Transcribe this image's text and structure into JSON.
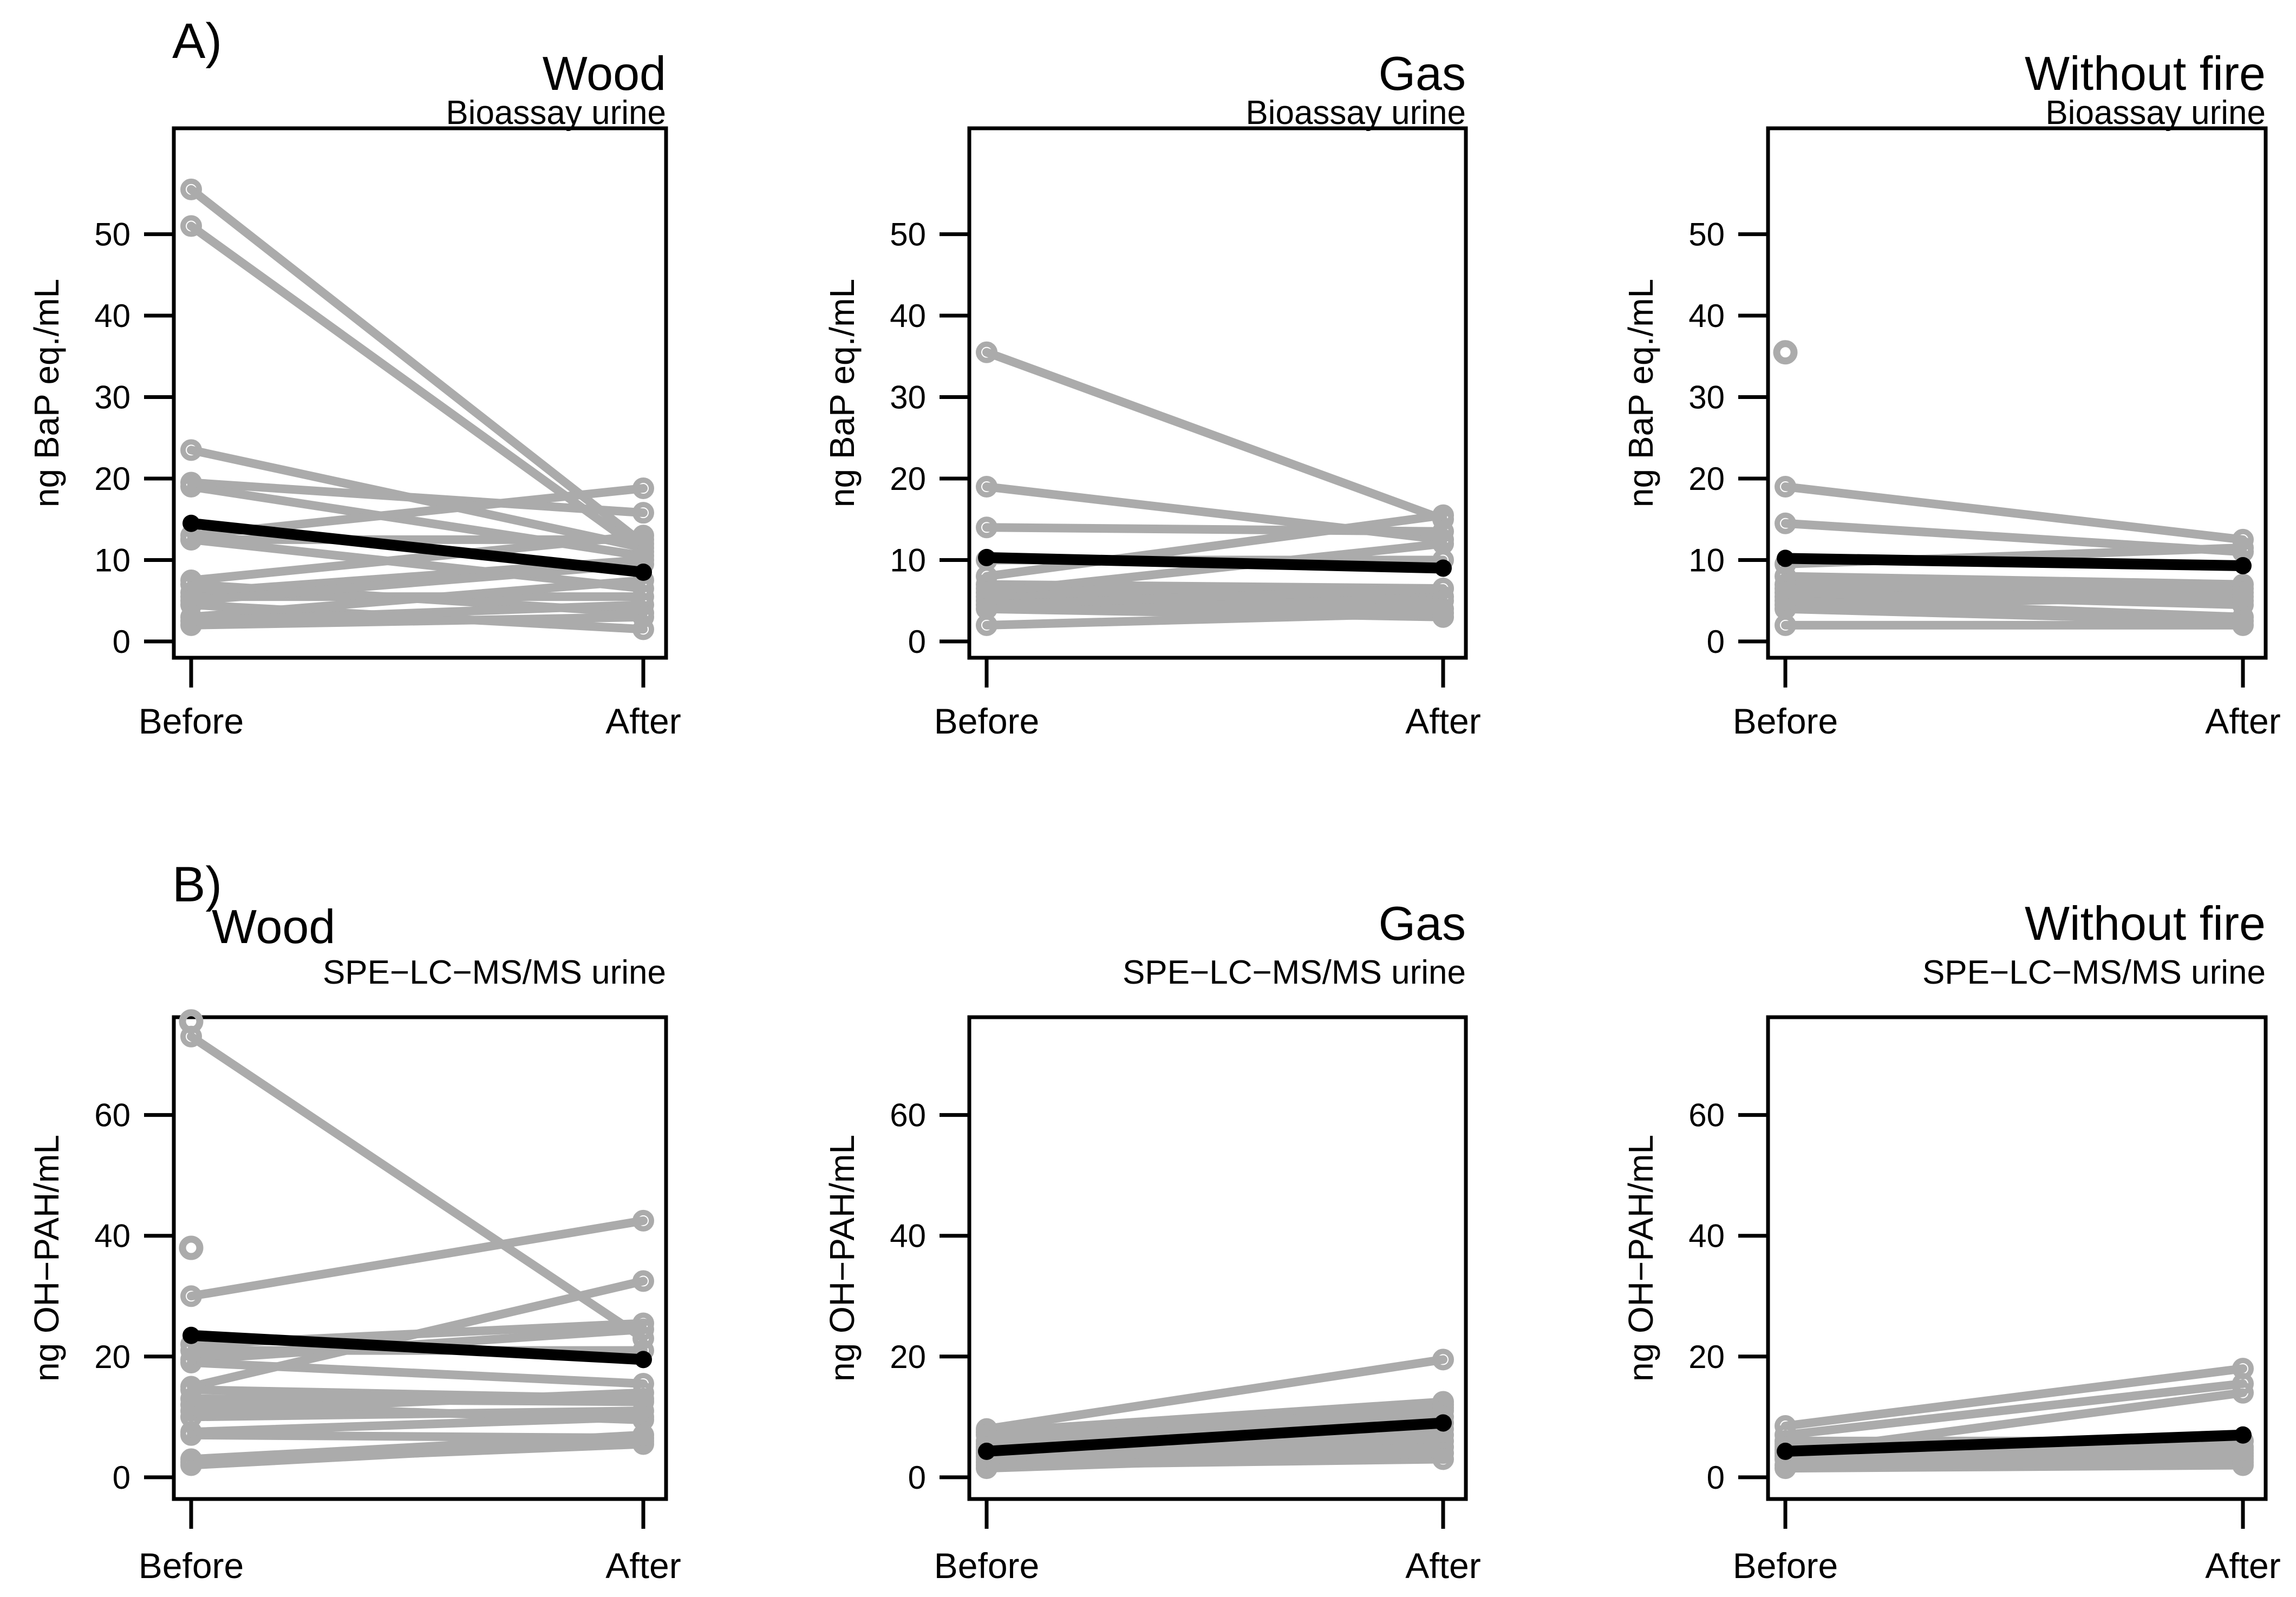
{
  "figure": {
    "background": "#ffffff",
    "colors": {
      "subject_gray": "#ABABAB",
      "mean_black": "#000000"
    },
    "section_labels": [
      {
        "id": "A",
        "text": "A)"
      },
      {
        "id": "B",
        "text": "B)"
      }
    ]
  },
  "chart_data": [
    {
      "id": "wood-bioassay",
      "type": "line",
      "title": "Wood",
      "subtitle": "Bioassay urine",
      "ylabel": "ng BaP eq./mL",
      "categories": [
        "Before",
        "After"
      ],
      "yticks": [
        0,
        10,
        20,
        30,
        40,
        50
      ],
      "ylim": [
        -2,
        63
      ],
      "grid": false,
      "legend": "none",
      "series": [
        [
          55.5,
          12
        ],
        [
          51,
          11
        ],
        [
          23.5,
          11.5
        ],
        [
          19.5,
          15.8
        ],
        [
          19,
          10.5
        ],
        [
          13,
          18.8
        ],
        [
          12.5,
          12.5
        ],
        [
          12.5,
          6.5
        ],
        [
          7.5,
          13
        ],
        [
          7,
          3.5
        ],
        [
          6,
          10
        ],
        [
          5.5,
          5.5
        ],
        [
          5,
          9.5
        ],
        [
          4.5,
          1.5
        ],
        [
          3,
          7.5
        ],
        [
          2.5,
          4.5
        ],
        [
          2,
          3
        ]
      ],
      "mean_series": [
        14.5,
        8.5
      ],
      "unpaired_before": []
    },
    {
      "id": "gas-bioassay",
      "type": "line",
      "title": "Gas",
      "subtitle": "Bioassay urine",
      "ylabel": "ng BaP eq./mL",
      "categories": [
        "Before",
        "After"
      ],
      "yticks": [
        0,
        10,
        20,
        30,
        40,
        50
      ],
      "ylim": [
        -2,
        63
      ],
      "grid": false,
      "legend": "none",
      "series": [
        [
          35.5,
          15
        ],
        [
          19,
          12.5
        ],
        [
          14,
          13.5
        ],
        [
          10,
          10
        ],
        [
          8,
          15.5
        ],
        [
          7,
          6.5
        ],
        [
          6.5,
          5.5
        ],
        [
          6,
          12
        ],
        [
          5.5,
          5
        ],
        [
          5,
          4
        ],
        [
          4.5,
          6.5
        ],
        [
          4,
          3
        ],
        [
          2,
          3.5
        ]
      ],
      "mean_series": [
        10.3,
        9
      ],
      "unpaired_before": []
    },
    {
      "id": "without-fire-bioassay",
      "type": "line",
      "title": "Without fire",
      "subtitle": "Bioassay urine",
      "ylabel": "ng BaP eq./mL",
      "categories": [
        "Before",
        "After"
      ],
      "yticks": [
        0,
        10,
        20,
        30,
        40,
        50
      ],
      "ylim": [
        -2,
        63
      ],
      "grid": false,
      "legend": "none",
      "series": [
        [
          19,
          12.5
        ],
        [
          14.5,
          11
        ],
        [
          9.5,
          11.5
        ],
        [
          8,
          7
        ],
        [
          7,
          6.5
        ],
        [
          6.5,
          5
        ],
        [
          6,
          4.5
        ],
        [
          5.5,
          6
        ],
        [
          5,
          3
        ],
        [
          4.5,
          5.5
        ],
        [
          4,
          2.5
        ],
        [
          2,
          2
        ]
      ],
      "mean_series": [
        10.2,
        9.3
      ],
      "unpaired_before": [
        35.5
      ]
    },
    {
      "id": "wood-spe",
      "type": "line",
      "title": "Wood",
      "subtitle": "SPE−LC−MS/MS urine",
      "ylabel": "ng OH−PAH/mL",
      "categories": [
        "Before",
        "After"
      ],
      "yticks": [
        0,
        20,
        40,
        60
      ],
      "ylim": [
        -3.6,
        76.2
      ],
      "grid": false,
      "legend": "none",
      "title_align": "left",
      "series": [
        [
          73,
          23
        ],
        [
          30,
          42.5
        ],
        [
          22,
          25.5
        ],
        [
          21,
          21
        ],
        [
          19.5,
          24.5
        ],
        [
          19,
          15.5
        ],
        [
          15,
          32.5
        ],
        [
          14.5,
          13
        ],
        [
          13,
          12.5
        ],
        [
          12,
          9.5
        ],
        [
          11,
          14
        ],
        [
          10,
          11
        ],
        [
          7.5,
          10
        ],
        [
          7,
          6.5
        ],
        [
          3,
          7
        ],
        [
          2.5,
          5.5
        ],
        [
          2,
          6
        ]
      ],
      "mean_series": [
        23.5,
        19.5
      ],
      "unpaired_before": [
        75.5,
        38
      ]
    },
    {
      "id": "gas-spe",
      "type": "line",
      "title": "Gas",
      "subtitle": "SPE−LC−MS/MS urine",
      "ylabel": "ng OH−PAH/mL",
      "categories": [
        "Before",
        "After"
      ],
      "yticks": [
        0,
        20,
        40,
        60
      ],
      "ylim": [
        -3.6,
        76.2
      ],
      "grid": false,
      "legend": "none",
      "series": [
        [
          8,
          19.5
        ],
        [
          7.5,
          12.5
        ],
        [
          7,
          12
        ],
        [
          6,
          11.5
        ],
        [
          5.5,
          11
        ],
        [
          5,
          10
        ],
        [
          4.5,
          8
        ],
        [
          4,
          9
        ],
        [
          3.5,
          7
        ],
        [
          3,
          6
        ],
        [
          2.5,
          5
        ],
        [
          2,
          3
        ],
        [
          1.5,
          4
        ]
      ],
      "mean_series": [
        4.3,
        9
      ],
      "unpaired_before": []
    },
    {
      "id": "without-fire-spe",
      "type": "line",
      "title": "Without fire",
      "subtitle": "SPE−LC−MS/MS urine",
      "ylabel": "ng OH−PAH/mL",
      "categories": [
        "Before",
        "After"
      ],
      "yticks": [
        0,
        20,
        40,
        60
      ],
      "ylim": [
        -3.6,
        76.2
      ],
      "grid": false,
      "legend": "none",
      "series": [
        [
          8.5,
          18
        ],
        [
          7,
          15.5
        ],
        [
          4,
          14
        ],
        [
          6,
          6
        ],
        [
          5.5,
          5
        ],
        [
          5,
          4.5
        ],
        [
          4.5,
          4
        ],
        [
          3.5,
          3.5
        ],
        [
          3,
          3
        ],
        [
          2,
          2.5
        ],
        [
          1.5,
          2
        ]
      ],
      "mean_series": [
        4.3,
        7
      ],
      "unpaired_before": []
    }
  ]
}
